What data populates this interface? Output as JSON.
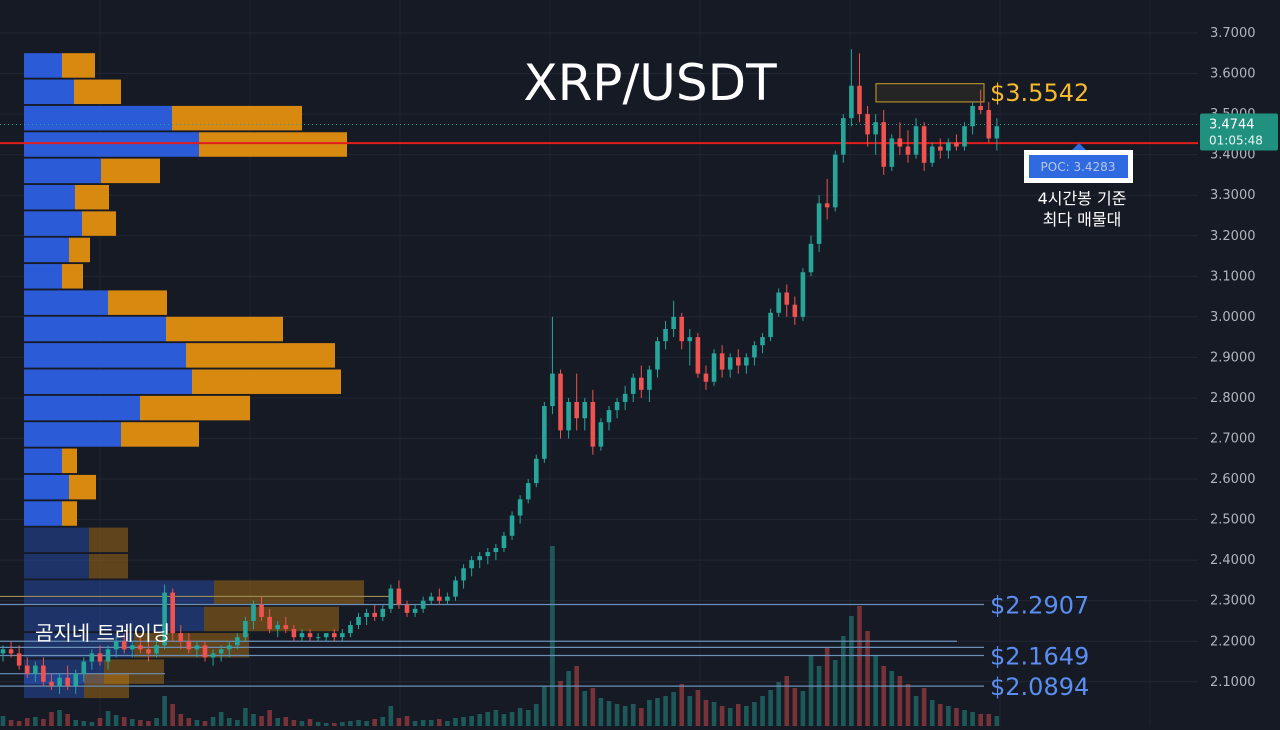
{
  "chart_data": {
    "type": "candlestick",
    "title": "XRP/USDT",
    "watermark": "곰지네 트레이딩",
    "ylim": [
      2.05,
      3.72
    ],
    "y_ticks": [
      "3.7000",
      "3.6000",
      "3.5000",
      "3.4000",
      "3.3000",
      "3.2000",
      "3.1000",
      "3.0000",
      "2.9000",
      "2.8000",
      "2.7000",
      "2.6000",
      "2.5000",
      "2.4000",
      "2.3000",
      "2.2000",
      "2.1000"
    ],
    "y_tick_values": [
      3.7,
      3.6,
      3.5,
      3.4,
      3.3,
      3.2,
      3.1,
      3.0,
      2.9,
      2.8,
      2.7,
      2.6,
      2.5,
      2.4,
      2.3,
      2.2,
      2.1
    ],
    "current_price": {
      "price": 3.4744,
      "label": "3.4744",
      "countdown": "01:05:48"
    },
    "poc": {
      "price": 3.4283,
      "label": "POC: 3.4283",
      "caption_line1": "4시간봉 기준",
      "caption_line2": "최다 매물대"
    },
    "levels": [
      {
        "price": 3.5542,
        "label": "$3.5542"
      },
      {
        "price": 2.2907,
        "label": "$2.2907"
      },
      {
        "price": 2.1649,
        "label": "$2.1649"
      },
      {
        "price": 2.0894,
        "label": "$2.0894"
      }
    ],
    "volume_profile": [
      {
        "price": 3.62,
        "buy": 38,
        "sell": 33
      },
      {
        "price": 3.555,
        "buy": 50,
        "sell": 47
      },
      {
        "price": 3.49,
        "buy": 148,
        "sell": 130
      },
      {
        "price": 3.425,
        "buy": 175,
        "sell": 148
      },
      {
        "price": 3.36,
        "buy": 77,
        "sell": 59
      },
      {
        "price": 3.295,
        "buy": 51,
        "sell": 34
      },
      {
        "price": 3.23,
        "buy": 58,
        "sell": 34
      },
      {
        "price": 3.165,
        "buy": 45,
        "sell": 21
      },
      {
        "price": 3.1,
        "buy": 38,
        "sell": 21
      },
      {
        "price": 3.035,
        "buy": 84,
        "sell": 59
      },
      {
        "price": 2.97,
        "buy": 142,
        "sell": 117
      },
      {
        "price": 2.905,
        "buy": 162,
        "sell": 149
      },
      {
        "price": 2.84,
        "buy": 168,
        "sell": 149
      },
      {
        "price": 2.775,
        "buy": 116,
        "sell": 110
      },
      {
        "price": 2.71,
        "buy": 97,
        "sell": 78
      },
      {
        "price": 2.645,
        "buy": 38,
        "sell": 15
      },
      {
        "price": 2.58,
        "buy": 45,
        "sell": 27
      },
      {
        "price": 2.515,
        "buy": 38,
        "sell": 15
      },
      {
        "price": 2.45,
        "buy": 65,
        "sell": 39
      },
      {
        "price": 2.385,
        "buy": 65,
        "sell": 39
      },
      {
        "price": 2.32,
        "buy": 190,
        "sell": 150
      },
      {
        "price": 2.255,
        "buy": 180,
        "sell": 135
      },
      {
        "price": 2.19,
        "buy": 110,
        "sell": 115
      },
      {
        "price": 2.125,
        "buy": 80,
        "sell": 60
      },
      {
        "price": 2.09,
        "buy": 60,
        "sell": 45
      }
    ],
    "candles": [
      [
        2.17,
        2.19,
        2.15,
        2.18
      ],
      [
        2.18,
        2.2,
        2.16,
        2.17
      ],
      [
        2.17,
        2.19,
        2.13,
        2.14
      ],
      [
        2.14,
        2.16,
        2.11,
        2.12
      ],
      [
        2.12,
        2.15,
        2.1,
        2.14
      ],
      [
        2.14,
        2.16,
        2.09,
        2.1
      ],
      [
        2.1,
        2.12,
        2.08,
        2.09
      ],
      [
        2.09,
        2.12,
        2.07,
        2.11
      ],
      [
        2.11,
        2.14,
        2.08,
        2.09
      ],
      [
        2.09,
        2.13,
        2.07,
        2.12
      ],
      [
        2.12,
        2.16,
        2.1,
        2.15
      ],
      [
        2.15,
        2.18,
        2.13,
        2.17
      ],
      [
        2.17,
        2.19,
        2.14,
        2.15
      ],
      [
        2.15,
        2.19,
        2.13,
        2.18
      ],
      [
        2.18,
        2.21,
        2.16,
        2.2
      ],
      [
        2.2,
        2.22,
        2.17,
        2.18
      ],
      [
        2.18,
        2.2,
        2.16,
        2.19
      ],
      [
        2.19,
        2.21,
        2.17,
        2.18
      ],
      [
        2.18,
        2.2,
        2.15,
        2.17
      ],
      [
        2.17,
        2.2,
        2.16,
        2.19
      ],
      [
        2.19,
        2.34,
        2.18,
        2.32
      ],
      [
        2.32,
        2.33,
        2.2,
        2.22
      ],
      [
        2.22,
        2.24,
        2.18,
        2.2
      ],
      [
        2.2,
        2.22,
        2.17,
        2.18
      ],
      [
        2.18,
        2.2,
        2.16,
        2.19
      ],
      [
        2.19,
        2.2,
        2.15,
        2.16
      ],
      [
        2.16,
        2.18,
        2.14,
        2.17
      ],
      [
        2.17,
        2.19,
        2.15,
        2.18
      ],
      [
        2.18,
        2.2,
        2.16,
        2.19
      ],
      [
        2.19,
        2.22,
        2.18,
        2.21
      ],
      [
        2.21,
        2.26,
        2.2,
        2.25
      ],
      [
        2.25,
        2.3,
        2.23,
        2.29
      ],
      [
        2.29,
        2.31,
        2.25,
        2.26
      ],
      [
        2.26,
        2.28,
        2.22,
        2.23
      ],
      [
        2.23,
        2.25,
        2.21,
        2.24
      ],
      [
        2.24,
        2.26,
        2.22,
        2.23
      ],
      [
        2.23,
        2.24,
        2.2,
        2.21
      ],
      [
        2.21,
        2.23,
        2.2,
        2.22
      ],
      [
        2.22,
        2.23,
        2.2,
        2.21
      ],
      [
        2.21,
        2.22,
        2.2,
        2.21
      ],
      [
        2.21,
        2.22,
        2.2,
        2.22
      ],
      [
        2.22,
        2.23,
        2.2,
        2.21
      ],
      [
        2.21,
        2.23,
        2.2,
        2.22
      ],
      [
        2.22,
        2.25,
        2.21,
        2.24
      ],
      [
        2.24,
        2.27,
        2.23,
        2.26
      ],
      [
        2.26,
        2.28,
        2.24,
        2.27
      ],
      [
        2.27,
        2.29,
        2.25,
        2.26
      ],
      [
        2.26,
        2.29,
        2.25,
        2.28
      ],
      [
        2.28,
        2.34,
        2.27,
        2.33
      ],
      [
        2.33,
        2.35,
        2.28,
        2.29
      ],
      [
        2.29,
        2.3,
        2.26,
        2.27
      ],
      [
        2.27,
        2.29,
        2.26,
        2.28
      ],
      [
        2.28,
        2.31,
        2.27,
        2.3
      ],
      [
        2.3,
        2.32,
        2.29,
        2.31
      ],
      [
        2.31,
        2.33,
        2.29,
        2.3
      ],
      [
        2.3,
        2.32,
        2.29,
        2.31
      ],
      [
        2.31,
        2.36,
        2.3,
        2.35
      ],
      [
        2.35,
        2.39,
        2.33,
        2.38
      ],
      [
        2.38,
        2.41,
        2.36,
        2.4
      ],
      [
        2.4,
        2.42,
        2.38,
        2.41
      ],
      [
        2.41,
        2.43,
        2.39,
        2.42
      ],
      [
        2.42,
        2.44,
        2.4,
        2.43
      ],
      [
        2.43,
        2.47,
        2.42,
        2.46
      ],
      [
        2.46,
        2.52,
        2.45,
        2.51
      ],
      [
        2.51,
        2.56,
        2.49,
        2.55
      ],
      [
        2.55,
        2.6,
        2.54,
        2.59
      ],
      [
        2.59,
        2.66,
        2.58,
        2.65
      ],
      [
        2.65,
        2.79,
        2.64,
        2.78
      ],
      [
        2.78,
        3.0,
        2.76,
        2.86
      ],
      [
        2.86,
        2.87,
        2.7,
        2.72
      ],
      [
        2.72,
        2.8,
        2.7,
        2.79
      ],
      [
        2.79,
        2.86,
        2.72,
        2.75
      ],
      [
        2.75,
        2.8,
        2.72,
        2.79
      ],
      [
        2.79,
        2.82,
        2.66,
        2.68
      ],
      [
        2.68,
        2.75,
        2.67,
        2.74
      ],
      [
        2.74,
        2.78,
        2.72,
        2.77
      ],
      [
        2.77,
        2.8,
        2.75,
        2.79
      ],
      [
        2.79,
        2.83,
        2.77,
        2.81
      ],
      [
        2.81,
        2.86,
        2.79,
        2.85
      ],
      [
        2.85,
        2.88,
        2.8,
        2.82
      ],
      [
        2.82,
        2.88,
        2.79,
        2.87
      ],
      [
        2.87,
        2.95,
        2.85,
        2.94
      ],
      [
        2.94,
        2.99,
        2.92,
        2.97
      ],
      [
        2.97,
        3.04,
        2.95,
        3.0
      ],
      [
        3.0,
        3.01,
        2.92,
        2.94
      ],
      [
        2.94,
        2.97,
        2.88,
        2.95
      ],
      [
        2.95,
        2.96,
        2.85,
        2.86
      ],
      [
        2.86,
        2.88,
        2.82,
        2.84
      ],
      [
        2.84,
        2.92,
        2.83,
        2.91
      ],
      [
        2.91,
        2.93,
        2.85,
        2.87
      ],
      [
        2.87,
        2.91,
        2.85,
        2.9
      ],
      [
        2.9,
        2.92,
        2.86,
        2.88
      ],
      [
        2.88,
        2.91,
        2.86,
        2.9
      ],
      [
        2.9,
        2.94,
        2.88,
        2.93
      ],
      [
        2.93,
        2.96,
        2.91,
        2.95
      ],
      [
        2.95,
        3.02,
        2.94,
        3.01
      ],
      [
        3.01,
        3.07,
        3.0,
        3.06
      ],
      [
        3.06,
        3.08,
        3.0,
        3.03
      ],
      [
        3.03,
        3.05,
        2.98,
        3.0
      ],
      [
        3.0,
        3.12,
        2.99,
        3.11
      ],
      [
        3.11,
        3.2,
        3.1,
        3.18
      ],
      [
        3.18,
        3.3,
        3.16,
        3.28
      ],
      [
        3.28,
        3.34,
        3.24,
        3.27
      ],
      [
        3.27,
        3.41,
        3.26,
        3.4
      ],
      [
        3.4,
        3.5,
        3.38,
        3.49
      ],
      [
        3.49,
        3.66,
        3.47,
        3.57
      ],
      [
        3.57,
        3.65,
        3.48,
        3.5
      ],
      [
        3.5,
        3.52,
        3.42,
        3.45
      ],
      [
        3.45,
        3.5,
        3.4,
        3.48
      ],
      [
        3.48,
        3.51,
        3.35,
        3.37
      ],
      [
        3.37,
        3.45,
        3.36,
        3.44
      ],
      [
        3.44,
        3.48,
        3.4,
        3.42
      ],
      [
        3.42,
        3.46,
        3.38,
        3.4
      ],
      [
        3.4,
        3.49,
        3.39,
        3.47
      ],
      [
        3.47,
        3.48,
        3.36,
        3.38
      ],
      [
        3.38,
        3.43,
        3.37,
        3.42
      ],
      [
        3.42,
        3.44,
        3.39,
        3.41
      ],
      [
        3.41,
        3.44,
        3.39,
        3.43
      ],
      [
        3.43,
        3.45,
        3.41,
        3.42
      ],
      [
        3.42,
        3.48,
        3.41,
        3.47
      ],
      [
        3.47,
        3.53,
        3.45,
        3.52
      ],
      [
        3.52,
        3.56,
        3.5,
        3.51
      ],
      [
        3.51,
        3.53,
        3.43,
        3.44
      ],
      [
        3.44,
        3.49,
        3.41,
        3.47
      ]
    ],
    "volumes": [
      10,
      6,
      5,
      8,
      9,
      7,
      14,
      16,
      12,
      6,
      5,
      4,
      8,
      15,
      11,
      9,
      7,
      6,
      5,
      8,
      30,
      22,
      12,
      8,
      6,
      5,
      9,
      14,
      8,
      6,
      18,
      12,
      10,
      16,
      8,
      9,
      6,
      5,
      7,
      4,
      3,
      3,
      4,
      5,
      6,
      5,
      7,
      9,
      20,
      8,
      10,
      5,
      6,
      6,
      7,
      5,
      8,
      9,
      10,
      12,
      14,
      16,
      12,
      14,
      18,
      16,
      22,
      40,
      180,
      45,
      55,
      60,
      35,
      38,
      28,
      25,
      22,
      20,
      22,
      18,
      26,
      28,
      30,
      34,
      42,
      30,
      36,
      26,
      24,
      20,
      18,
      22,
      20,
      24,
      30,
      36,
      44,
      50,
      38,
      35,
      70,
      60,
      78,
      66,
      90,
      110,
      120,
      95,
      70,
      60,
      55,
      50,
      42,
      30,
      38,
      26,
      22,
      20,
      18,
      16,
      14,
      12,
      12,
      10
    ]
  }
}
